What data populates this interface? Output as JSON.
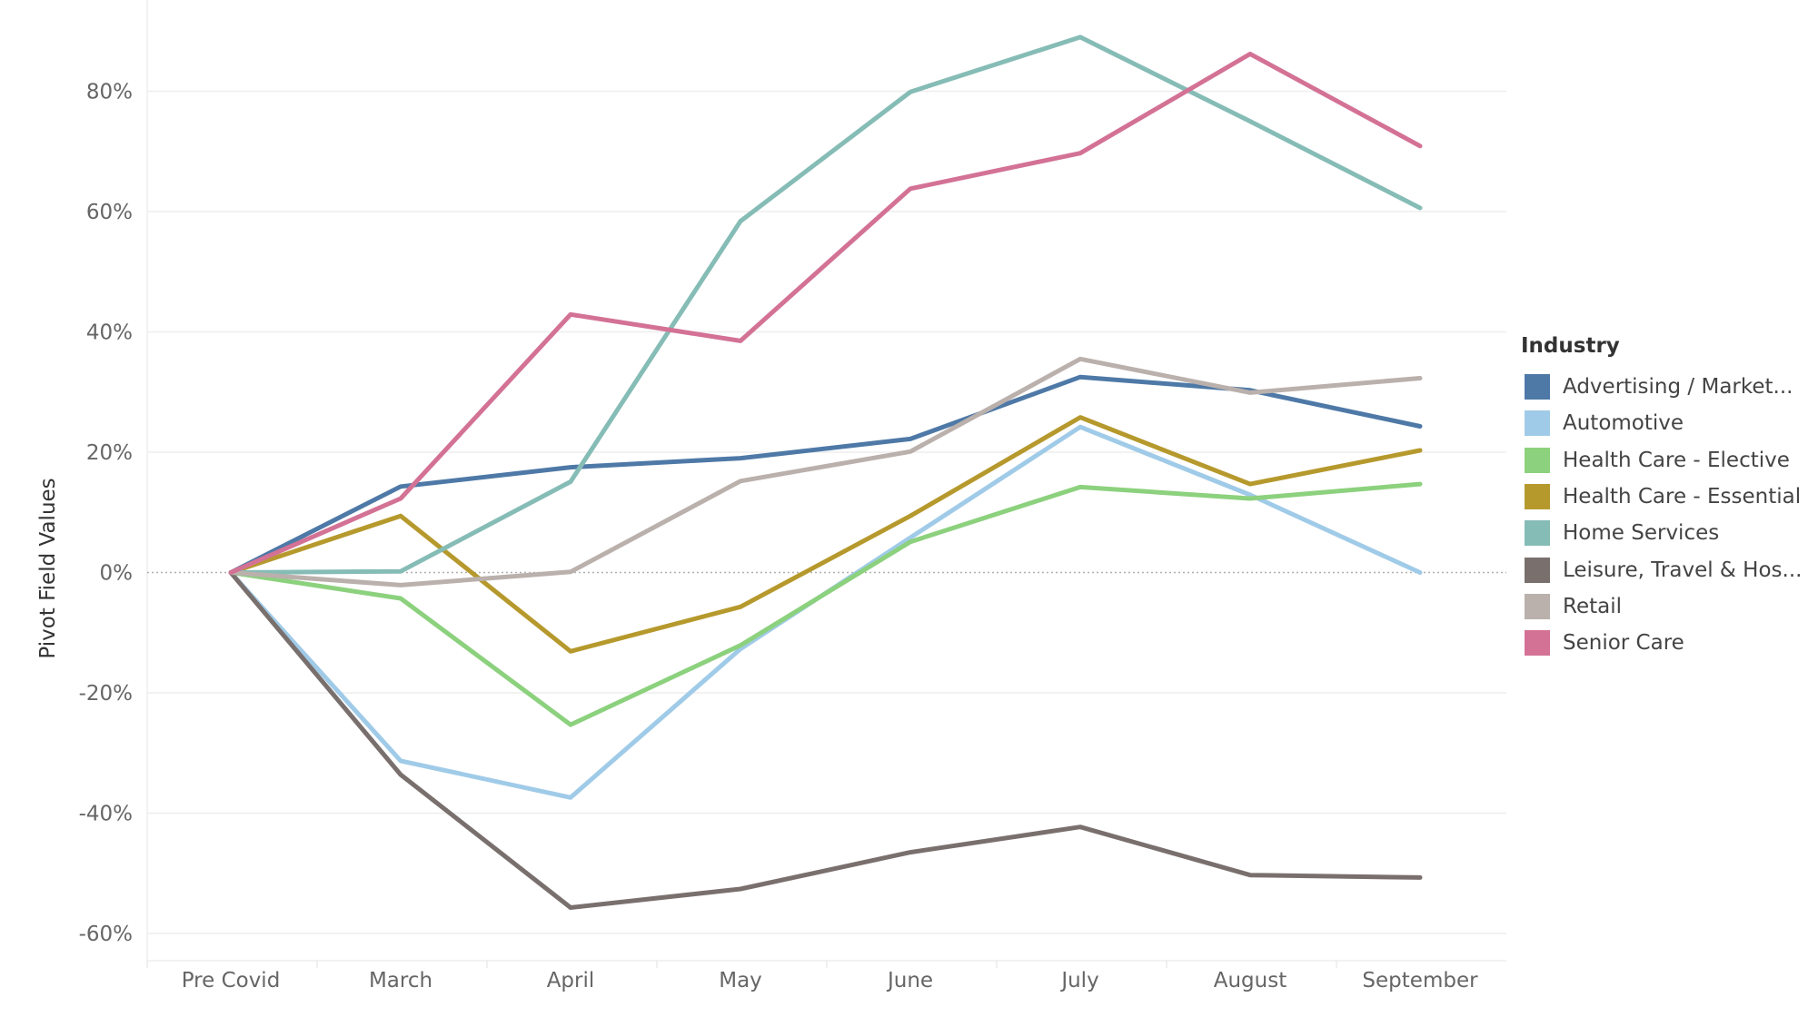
{
  "chart_data": {
    "type": "line",
    "ylabel": "Pivot Field Values",
    "categories": [
      "Pre Covid",
      "March",
      "April",
      "May",
      "June",
      "July",
      "August",
      "September"
    ],
    "yticks": [
      80,
      60,
      40,
      20,
      0,
      -20,
      -40,
      -60
    ],
    "ytick_labels": [
      "80%",
      "60%",
      "40%",
      "20%",
      "0%",
      "-20%",
      "-40%",
      "-60%"
    ],
    "ylim": [
      -64,
      96
    ],
    "grid": "horizontal",
    "zero_line": "dotted",
    "legend_title": "Industry",
    "legend_position": "right",
    "series": [
      {
        "name": "Advertising / Market...",
        "color": "#4e79a7",
        "values": [
          0,
          14.3,
          17.5,
          19,
          22.2,
          32.5,
          30.3,
          24.3
        ]
      },
      {
        "name": "Automotive",
        "color": "#a0cbe8",
        "values": [
          0,
          -31.3,
          -37.4,
          -12.7,
          5.8,
          24.2,
          12.9,
          0
        ]
      },
      {
        "name": "Health Care - Elective",
        "color": "#8cd17d",
        "values": [
          0,
          -4.3,
          -25.3,
          -12.1,
          5.1,
          14.2,
          12.3,
          14.7
        ]
      },
      {
        "name": "Health Care - Essential",
        "color": "#b6992d",
        "values": [
          0,
          9.4,
          -13.1,
          -5.7,
          9.4,
          25.8,
          14.7,
          20.3
        ]
      },
      {
        "name": "Home Services",
        "color": "#86bcb6",
        "values": [
          0,
          0.2,
          15.1,
          58.4,
          79.9,
          89,
          75,
          60.6
        ]
      },
      {
        "name": "Leisure, Travel & Hos...",
        "color": "#79706e",
        "values": [
          0,
          -33.6,
          -55.7,
          -52.6,
          -46.5,
          -42.3,
          -50.3,
          -50.7
        ]
      },
      {
        "name": "Retail",
        "color": "#bab0ac",
        "values": [
          0,
          -2.1,
          0.1,
          15.2,
          20.1,
          35.5,
          29.9,
          32.3
        ]
      },
      {
        "name": "Senior Care",
        "color": "#d37295",
        "values": [
          0,
          12.3,
          42.9,
          38.5,
          63.8,
          69.7,
          86.2,
          70.9
        ]
      }
    ]
  }
}
